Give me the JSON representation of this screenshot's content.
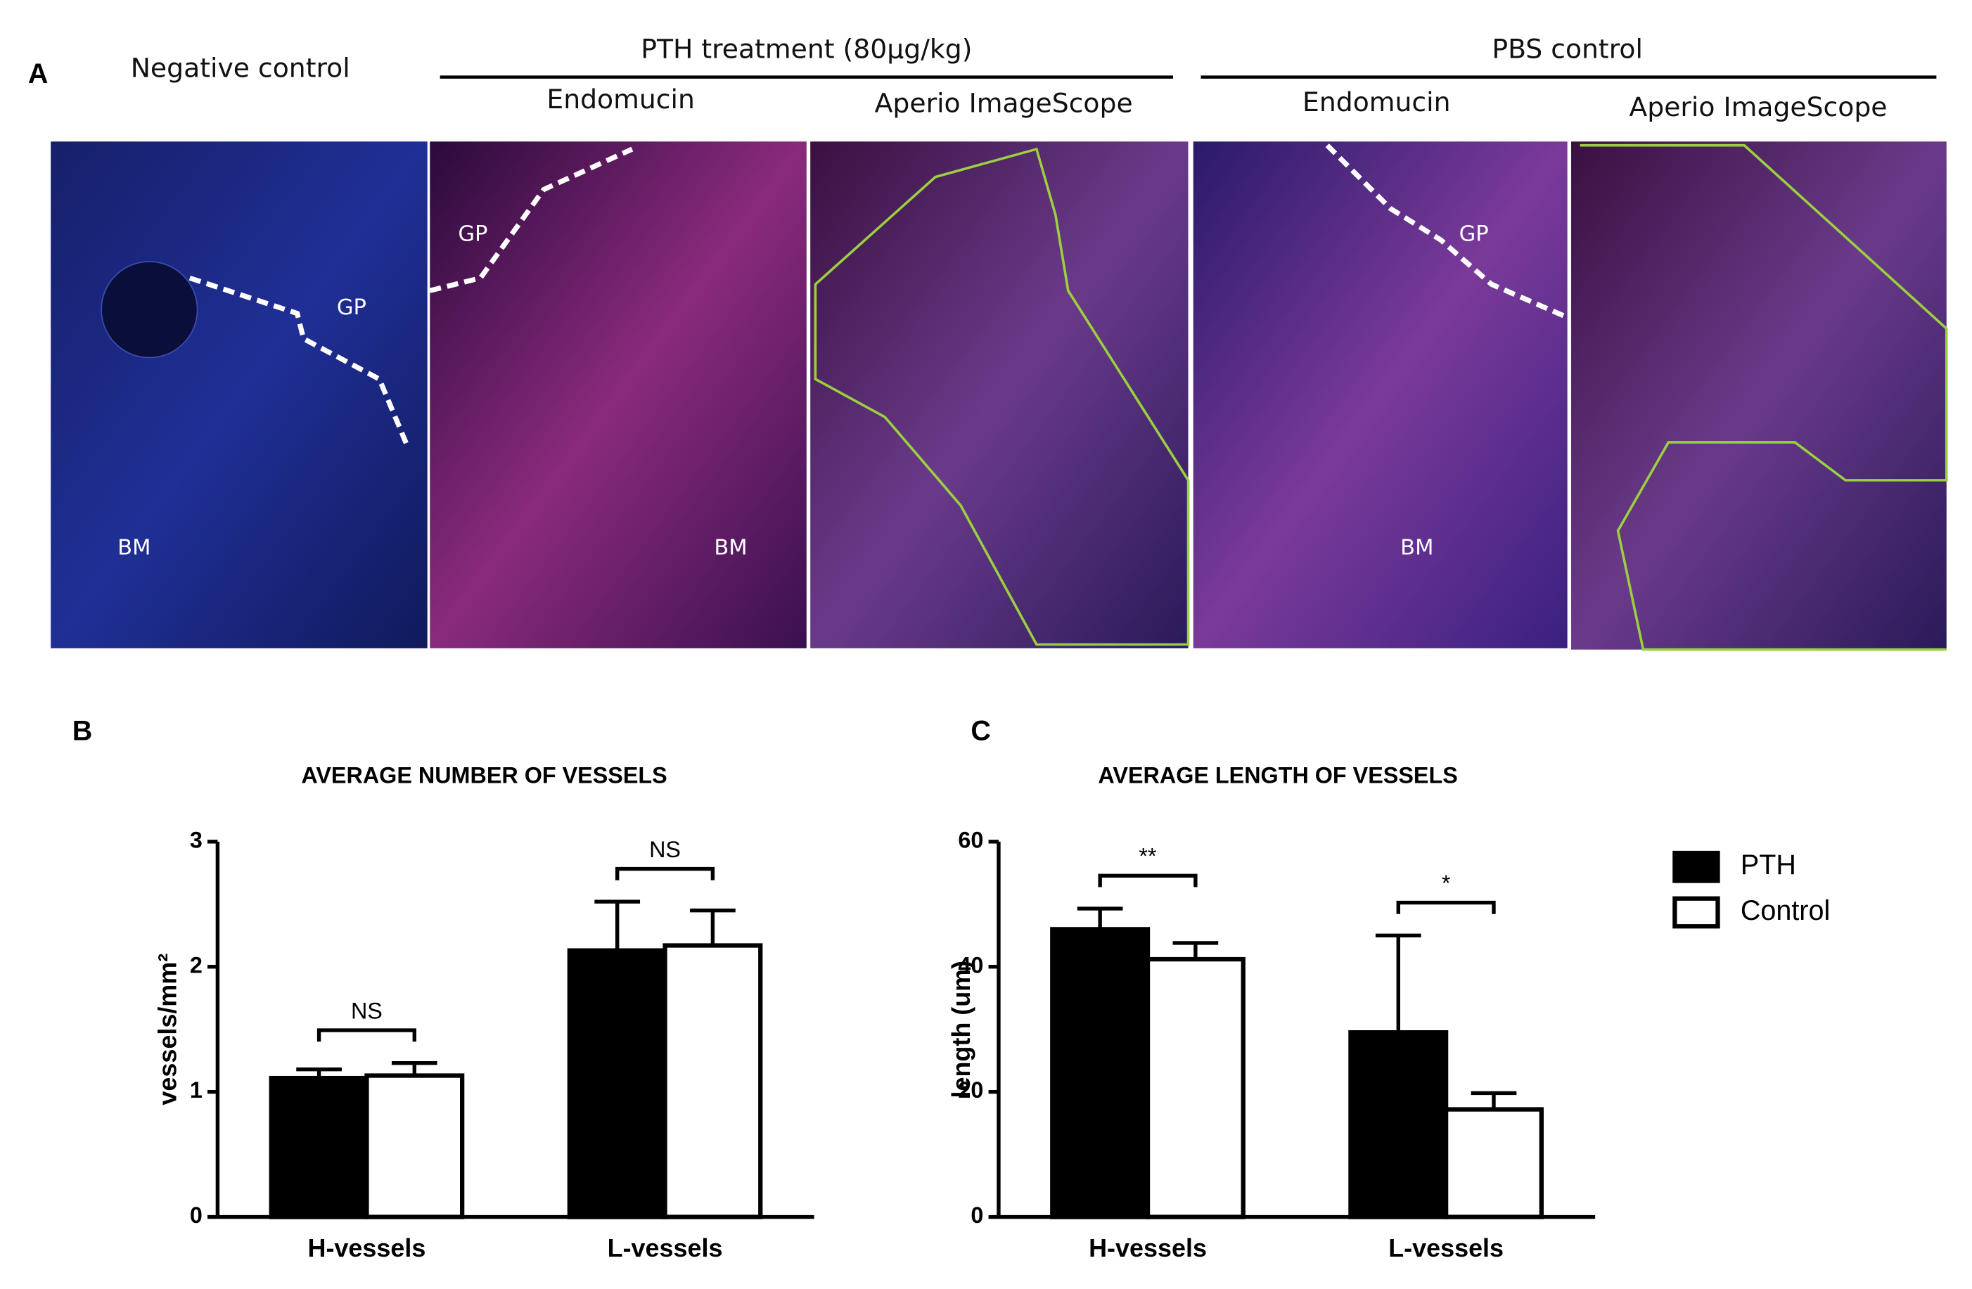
{
  "panel_a": {
    "label": "A",
    "negative_title": "Negative control",
    "groups": [
      {
        "title": "PTH treatment (80µg/kg)",
        "subtitles": [
          "Endomucin",
          "Aperio ImageScope"
        ]
      },
      {
        "title": "PBS control",
        "subtitles": [
          "Endomucin",
          "Aperio ImageScope"
        ]
      }
    ],
    "image_labels": {
      "negative": [
        "GP",
        "BM"
      ],
      "pth_endomucin": [
        "GP",
        "BM"
      ],
      "pbs_endomucin": [
        "GP",
        "BM"
      ]
    }
  },
  "chart_data": [
    {
      "type": "bar",
      "panel_label": "B",
      "title": "AVERAGE NUMBER OF VESSELS",
      "y_label": "vessels/mm²",
      "categories": [
        "H-vessels",
        "L-vessels"
      ],
      "series": [
        {
          "name": "PTH",
          "color": "#000000",
          "values": [
            1.11,
            2.13
          ],
          "errors": [
            0.07,
            0.39
          ]
        },
        {
          "name": "Control",
          "color": "#ffffff",
          "values": [
            1.13,
            2.17
          ],
          "errors": [
            0.1,
            0.28
          ]
        }
      ],
      "annotations": [
        "NS",
        "NS"
      ],
      "ylim": [
        0,
        3
      ],
      "yticks": [
        0,
        1,
        2,
        3
      ],
      "grid": false
    },
    {
      "type": "bar",
      "panel_label": "C",
      "title": "AVERAGE LENGTH OF VESSELS",
      "y_label": "length (um)",
      "categories": [
        "H-vessels",
        "L-vessels"
      ],
      "series": [
        {
          "name": "PTH",
          "color": "#000000",
          "values": [
            46,
            29.5
          ],
          "errors": [
            3.3,
            15.5
          ]
        },
        {
          "name": "Control",
          "color": "#ffffff",
          "values": [
            41.2,
            17.2
          ],
          "errors": [
            2.6,
            2.6
          ]
        }
      ],
      "annotations": [
        "**",
        "*"
      ],
      "ylim": [
        0,
        60
      ],
      "yticks": [
        0,
        20,
        40,
        60
      ],
      "grid": false,
      "legend": "right"
    }
  ]
}
